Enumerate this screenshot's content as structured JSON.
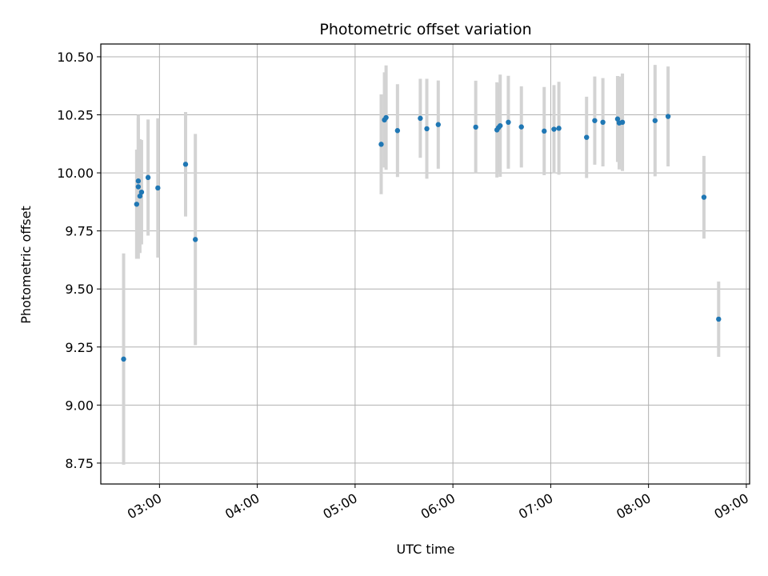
{
  "chart_data": {
    "type": "scatter",
    "title": "Photometric offset variation",
    "xlabel": "UTC time",
    "ylabel": "Photometric offset",
    "x_is_time": true,
    "xlim": [
      "02:24",
      "09:02"
    ],
    "ylim": [
      8.66,
      10.555
    ],
    "x_ticks": [
      "03:00",
      "04:00",
      "05:00",
      "06:00",
      "07:00",
      "08:00",
      "09:00"
    ],
    "y_ticks": [
      "8.75",
      "9.00",
      "9.25",
      "9.50",
      "9.75",
      "10.00",
      "10.25",
      "10.50"
    ],
    "grid": true,
    "colors": {
      "point": "#1f77b4",
      "errorbar": "#d3d3d3",
      "grid": "#b0b0b0",
      "axes": "#000000"
    },
    "points": [
      {
        "time": "02:38",
        "y": 9.198,
        "err": 0.455
      },
      {
        "time": "02:46",
        "y": 9.865,
        "err": 0.235
      },
      {
        "time": "02:47",
        "y": 9.94,
        "err": 0.31
      },
      {
        "time": "02:47",
        "y": 9.965,
        "err": 0.27
      },
      {
        "time": "02:48",
        "y": 9.9,
        "err": 0.245
      },
      {
        "time": "02:49",
        "y": 9.917,
        "err": 0.225
      },
      {
        "time": "02:53",
        "y": 9.98,
        "err": 0.25
      },
      {
        "time": "02:59",
        "y": 9.935,
        "err": 0.3
      },
      {
        "time": "03:16",
        "y": 10.037,
        "err": 0.225
      },
      {
        "time": "03:22",
        "y": 9.713,
        "err": 0.455
      },
      {
        "time": "05:16",
        "y": 10.123,
        "err": 0.215
      },
      {
        "time": "05:18",
        "y": 10.228,
        "err": 0.205
      },
      {
        "time": "05:19",
        "y": 10.238,
        "err": 0.225
      },
      {
        "time": "05:26",
        "y": 10.182,
        "err": 0.2
      },
      {
        "time": "05:40",
        "y": 10.235,
        "err": 0.17
      },
      {
        "time": "05:44",
        "y": 10.19,
        "err": 0.215
      },
      {
        "time": "05:51",
        "y": 10.208,
        "err": 0.19
      },
      {
        "time": "06:14",
        "y": 10.197,
        "err": 0.2
      },
      {
        "time": "06:27",
        "y": 10.185,
        "err": 0.205
      },
      {
        "time": "06:28",
        "y": 10.195,
        "err": 0.19
      },
      {
        "time": "06:29",
        "y": 10.203,
        "err": 0.22
      },
      {
        "time": "06:34",
        "y": 10.218,
        "err": 0.2
      },
      {
        "time": "06:42",
        "y": 10.198,
        "err": 0.175
      },
      {
        "time": "06:56",
        "y": 10.18,
        "err": 0.19
      },
      {
        "time": "07:02",
        "y": 10.188,
        "err": 0.19
      },
      {
        "time": "07:05",
        "y": 10.192,
        "err": 0.2
      },
      {
        "time": "07:22",
        "y": 10.153,
        "err": 0.175
      },
      {
        "time": "07:27",
        "y": 10.225,
        "err": 0.19
      },
      {
        "time": "07:32",
        "y": 10.218,
        "err": 0.19
      },
      {
        "time": "07:41",
        "y": 10.232,
        "err": 0.185
      },
      {
        "time": "07:42",
        "y": 10.215,
        "err": 0.2
      },
      {
        "time": "07:44",
        "y": 10.218,
        "err": 0.21
      },
      {
        "time": "08:04",
        "y": 10.225,
        "err": 0.24
      },
      {
        "time": "08:12",
        "y": 10.243,
        "err": 0.215
      },
      {
        "time": "08:34",
        "y": 9.895,
        "err": 0.178
      },
      {
        "time": "08:43",
        "y": 9.37,
        "err": 0.162
      }
    ]
  }
}
